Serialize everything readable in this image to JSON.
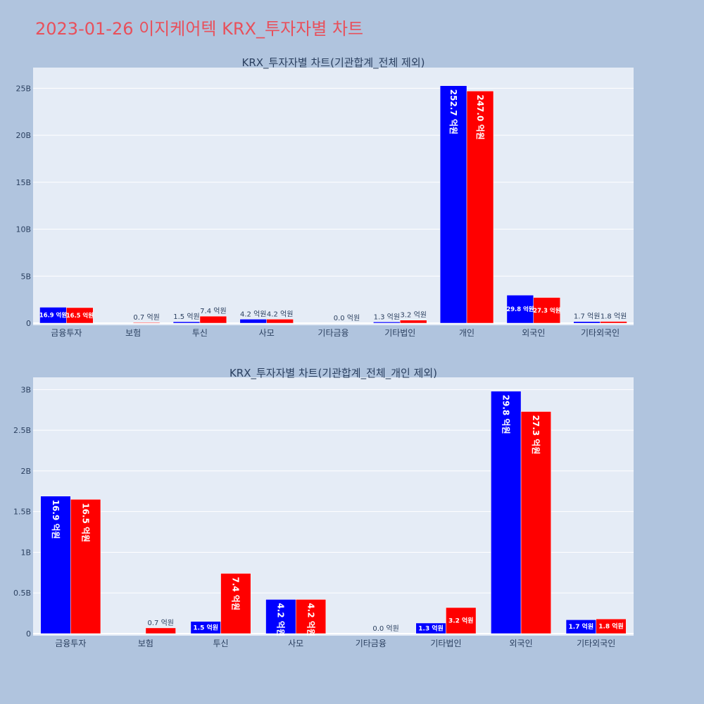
{
  "page_title": "2023-01-26 이지케어텍 KRX_투자자별 차트",
  "colors": {
    "page_bg": "#b0c4de",
    "plot_bg": "#e5ecf6",
    "buy": "#0000ff",
    "sell": "#ff0000",
    "title": "#e8505b",
    "text": "#2a3f5f"
  },
  "chart_data": [
    {
      "type": "bar",
      "title": "KRX_투자자별 차트(기관합계_전체 제외)",
      "categories": [
        "금융투자",
        "보험",
        "투신",
        "사모",
        "기타금융",
        "기타법인",
        "개인",
        "외국인",
        "기타외국인"
      ],
      "series": [
        {
          "color": "#0000ff",
          "values": [
            1.69,
            0,
            0.15,
            0.42,
            0,
            0.13,
            25.27,
            2.98,
            0.17
          ],
          "labels": [
            "16.9 억원",
            "",
            "1.5 억원",
            "4.2 억원",
            "",
            "1.3 억원",
            "252.7 억원",
            "29.8 억원",
            "1.7 억원"
          ]
        },
        {
          "color": "#ff0000",
          "values": [
            1.65,
            0.07,
            0.74,
            0.42,
            0.0,
            0.32,
            24.7,
            2.73,
            0.18
          ],
          "labels": [
            "16.5 억원",
            "0.7 억원",
            "7.4 억원",
            "4.2 억원",
            "0.0 억원",
            "3.2 억원",
            "247.0 억원",
            "27.3 억원",
            "1.8 억원"
          ]
        }
      ],
      "yticks": [
        0,
        5,
        10,
        15,
        20,
        25
      ],
      "ytick_labels": [
        "0",
        "5B",
        "10B",
        "15B",
        "20B",
        "25B"
      ],
      "ylim": [
        0,
        27.2
      ]
    },
    {
      "type": "bar",
      "title": "KRX_투자자별 차트(기관합계_전체_개인 제외)",
      "categories": [
        "금융투자",
        "보험",
        "투신",
        "사모",
        "기타금융",
        "기타법인",
        "외국인",
        "기타외국인"
      ],
      "series": [
        {
          "color": "#0000ff",
          "values": [
            1.69,
            0,
            0.15,
            0.42,
            0,
            0.13,
            2.98,
            0.17
          ],
          "labels": [
            "16.9 억원",
            "",
            "1.5 억원",
            "4.2 억원",
            "",
            "1.3 억원",
            "29.8 억원",
            "1.7 억원"
          ]
        },
        {
          "color": "#ff0000",
          "values": [
            1.65,
            0.07,
            0.74,
            0.42,
            0.0,
            0.32,
            2.73,
            0.18
          ],
          "labels": [
            "16.5 억원",
            "0.7 억원",
            "7.4 억원",
            "4.2 억원",
            "0.0 억원",
            "3.2 억원",
            "27.3 억원",
            "1.8 억원"
          ]
        }
      ],
      "yticks": [
        0,
        0.5,
        1,
        1.5,
        2,
        2.5,
        3
      ],
      "ytick_labels": [
        "0",
        "0.5B",
        "1B",
        "1.5B",
        "2B",
        "2.5B",
        "3B"
      ],
      "ylim": [
        0,
        3.15
      ]
    }
  ]
}
